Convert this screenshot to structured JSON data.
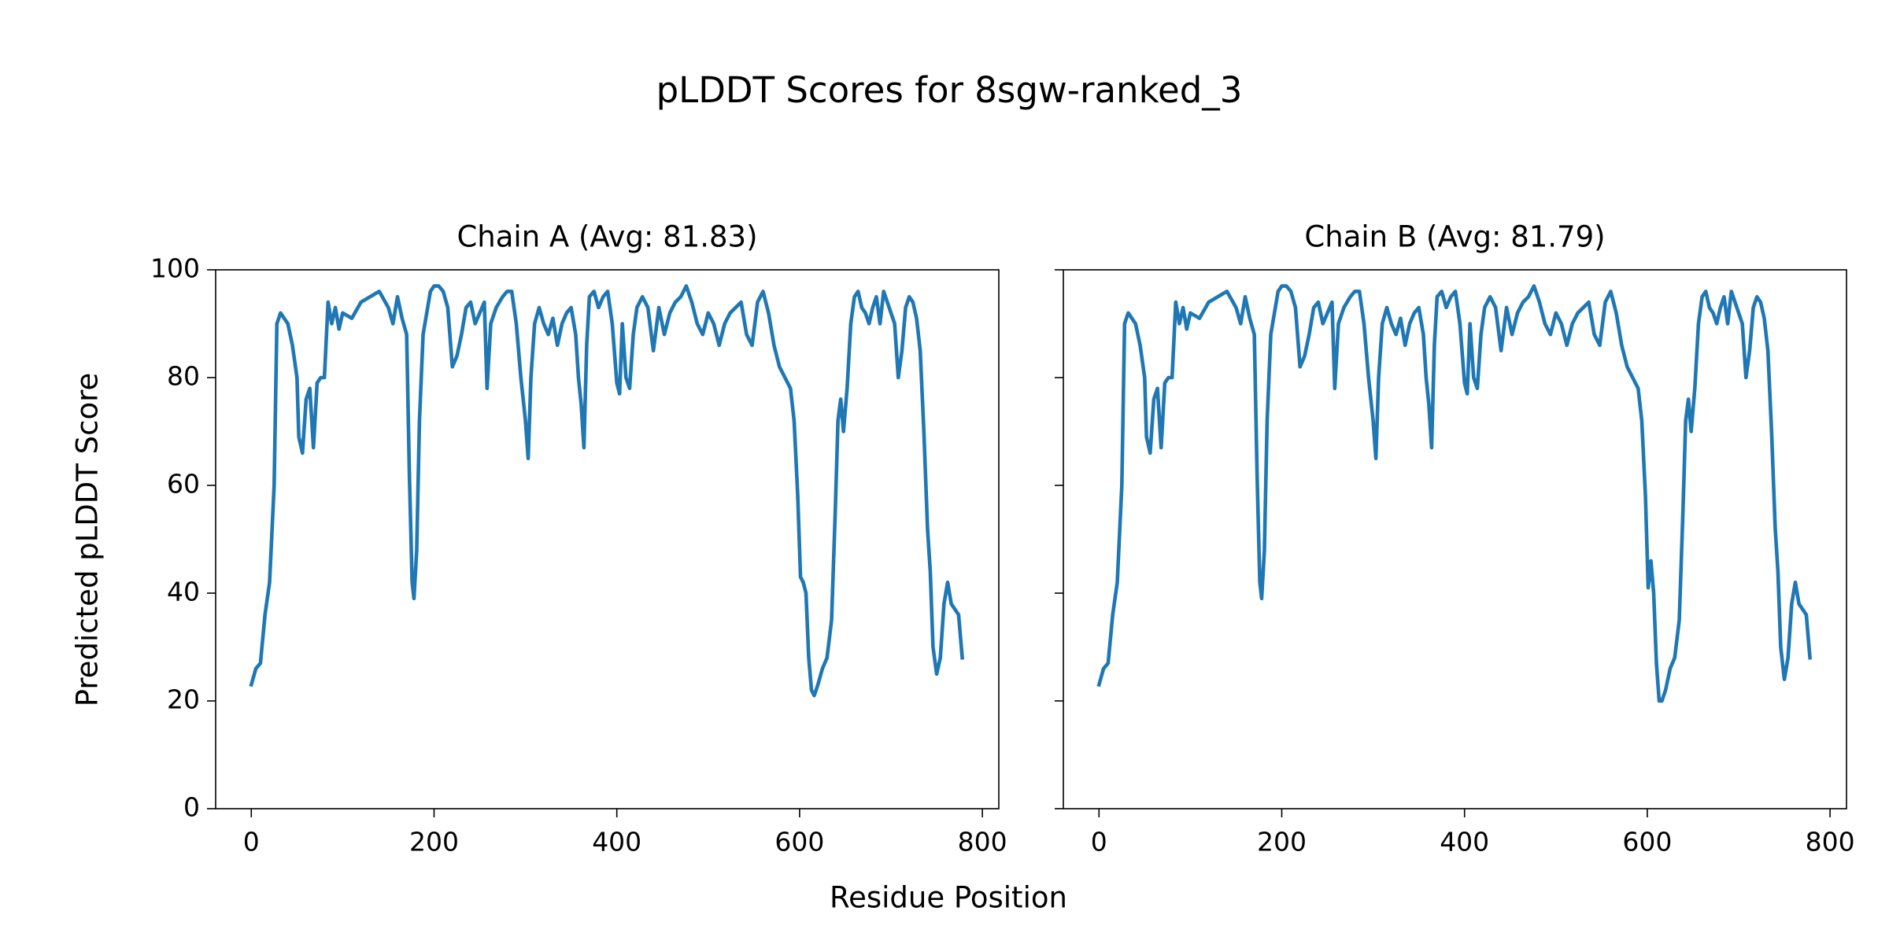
{
  "title": "pLDDT Scores for 8sgw-ranked_3",
  "xlabel": "Residue Position",
  "ylabel": "Predicted pLDDT Score",
  "sharey": true,
  "chart_data": [
    {
      "type": "line",
      "title": "Chain A (Avg: 81.83)",
      "color": "#1f77b4",
      "xlim": [
        -39,
        818
      ],
      "ylim": [
        0,
        100
      ],
      "xticks": [
        0,
        200,
        400,
        600,
        800
      ],
      "yticks": [
        0,
        20,
        40,
        60,
        80,
        100
      ],
      "x": [
        0,
        5,
        10,
        15,
        20,
        25,
        28,
        32,
        36,
        40,
        45,
        50,
        52,
        56,
        60,
        64,
        68,
        72,
        76,
        80,
        84,
        88,
        92,
        96,
        100,
        110,
        120,
        130,
        140,
        150,
        155,
        160,
        165,
        170,
        173,
        176,
        178,
        181,
        184,
        188,
        192,
        196,
        200,
        205,
        210,
        215,
        220,
        225,
        230,
        235,
        240,
        245,
        250,
        255,
        258,
        262,
        268,
        275,
        280,
        285,
        290,
        295,
        300,
        303,
        306,
        310,
        315,
        320,
        325,
        330,
        335,
        340,
        345,
        350,
        355,
        358,
        361,
        364,
        367,
        370,
        375,
        380,
        385,
        390,
        395,
        400,
        403,
        406,
        410,
        414,
        418,
        422,
        428,
        434,
        440,
        446,
        452,
        458,
        464,
        470,
        476,
        482,
        488,
        494,
        500,
        506,
        512,
        518,
        524,
        530,
        536,
        542,
        548,
        554,
        560,
        566,
        572,
        578,
        584,
        590,
        594,
        598,
        601,
        604,
        607,
        610,
        613,
        616,
        620,
        625,
        630,
        635,
        639,
        642,
        645,
        648,
        652,
        656,
        660,
        664,
        668,
        672,
        676,
        680,
        684,
        688,
        692,
        696,
        700,
        704,
        708,
        712,
        716,
        720,
        724,
        728,
        732,
        736,
        740,
        743,
        746,
        750,
        754,
        758,
        762,
        766,
        770,
        774,
        778
      ],
      "values": [
        23,
        26,
        27,
        36,
        42,
        60,
        90,
        92,
        91,
        90,
        86,
        80,
        69,
        66,
        76,
        78,
        67,
        79,
        80,
        80,
        94,
        90,
        93,
        89,
        92,
        91,
        94,
        95,
        96,
        93,
        90,
        95,
        91,
        88,
        62,
        42,
        39,
        48,
        72,
        88,
        92,
        96,
        97,
        97,
        96,
        93,
        82,
        84,
        88,
        93,
        94,
        90,
        92,
        94,
        78,
        90,
        93,
        95,
        96,
        96,
        90,
        80,
        72,
        65,
        80,
        90,
        93,
        90,
        88,
        91,
        86,
        90,
        92,
        93,
        88,
        80,
        75,
        67,
        86,
        95,
        96,
        93,
        95,
        96,
        90,
        79,
        77,
        90,
        80,
        78,
        88,
        93,
        95,
        93,
        85,
        93,
        88,
        92,
        94,
        95,
        97,
        94,
        90,
        88,
        92,
        90,
        86,
        90,
        92,
        93,
        94,
        88,
        86,
        94,
        96,
        92,
        86,
        82,
        80,
        78,
        72,
        58,
        43,
        42,
        40,
        28,
        22,
        21,
        23,
        26,
        28,
        35,
        55,
        72,
        76,
        70,
        78,
        90,
        95,
        96,
        93,
        92,
        90,
        93,
        95,
        90,
        96,
        94,
        92,
        90,
        80,
        85,
        93,
        95,
        94,
        91,
        85,
        70,
        52,
        44,
        30,
        25,
        28,
        38,
        42,
        38,
        37,
        36,
        28
      ]
    },
    {
      "type": "line",
      "title": "Chain B (Avg: 81.79)",
      "color": "#1f77b4",
      "xlim": [
        -39,
        818
      ],
      "ylim": [
        0,
        100
      ],
      "xticks": [
        0,
        200,
        400,
        600,
        800
      ],
      "yticks": [
        0,
        20,
        40,
        60,
        80,
        100
      ],
      "x": [
        0,
        5,
        10,
        15,
        20,
        25,
        28,
        32,
        36,
        40,
        45,
        50,
        52,
        56,
        60,
        64,
        68,
        72,
        76,
        80,
        84,
        88,
        92,
        96,
        100,
        110,
        120,
        130,
        140,
        150,
        155,
        160,
        165,
        170,
        173,
        176,
        178,
        181,
        184,
        188,
        192,
        196,
        200,
        205,
        210,
        215,
        220,
        225,
        230,
        235,
        240,
        245,
        250,
        255,
        258,
        262,
        268,
        275,
        280,
        285,
        290,
        295,
        300,
        303,
        306,
        310,
        315,
        320,
        325,
        330,
        335,
        340,
        345,
        350,
        355,
        358,
        361,
        364,
        367,
        370,
        375,
        380,
        385,
        390,
        395,
        400,
        403,
        406,
        410,
        414,
        418,
        422,
        428,
        434,
        440,
        446,
        452,
        458,
        464,
        470,
        476,
        482,
        488,
        494,
        500,
        506,
        512,
        518,
        524,
        530,
        536,
        542,
        548,
        554,
        560,
        566,
        572,
        578,
        584,
        590,
        594,
        598,
        601,
        604,
        607,
        610,
        613,
        616,
        620,
        625,
        630,
        635,
        639,
        642,
        645,
        648,
        652,
        656,
        660,
        664,
        668,
        672,
        676,
        680,
        684,
        688,
        692,
        696,
        700,
        704,
        708,
        712,
        716,
        720,
        724,
        728,
        732,
        736,
        740,
        743,
        746,
        750,
        754,
        758,
        762,
        766,
        770,
        774,
        778
      ],
      "values": [
        23,
        26,
        27,
        36,
        42,
        60,
        90,
        92,
        91,
        90,
        86,
        80,
        69,
        66,
        76,
        78,
        67,
        79,
        80,
        80,
        94,
        90,
        93,
        89,
        92,
        91,
        94,
        95,
        96,
        93,
        90,
        95,
        91,
        88,
        62,
        42,
        39,
        48,
        72,
        88,
        92,
        96,
        97,
        97,
        96,
        93,
        82,
        84,
        88,
        93,
        94,
        90,
        92,
        94,
        78,
        90,
        93,
        95,
        96,
        96,
        90,
        80,
        72,
        65,
        80,
        90,
        93,
        90,
        88,
        91,
        86,
        90,
        92,
        93,
        88,
        80,
        75,
        67,
        86,
        95,
        96,
        93,
        95,
        96,
        90,
        79,
        77,
        90,
        80,
        78,
        88,
        93,
        95,
        93,
        85,
        93,
        88,
        92,
        94,
        95,
        97,
        94,
        90,
        88,
        92,
        90,
        86,
        90,
        92,
        93,
        94,
        88,
        86,
        94,
        96,
        92,
        86,
        82,
        80,
        78,
        72,
        58,
        41,
        46,
        40,
        27,
        20,
        20,
        22,
        26,
        28,
        35,
        55,
        72,
        76,
        70,
        78,
        90,
        95,
        96,
        93,
        92,
        90,
        93,
        95,
        90,
        96,
        94,
        92,
        90,
        80,
        85,
        93,
        95,
        94,
        91,
        85,
        70,
        52,
        44,
        30,
        24,
        28,
        38,
        42,
        38,
        37,
        36,
        28
      ]
    }
  ]
}
